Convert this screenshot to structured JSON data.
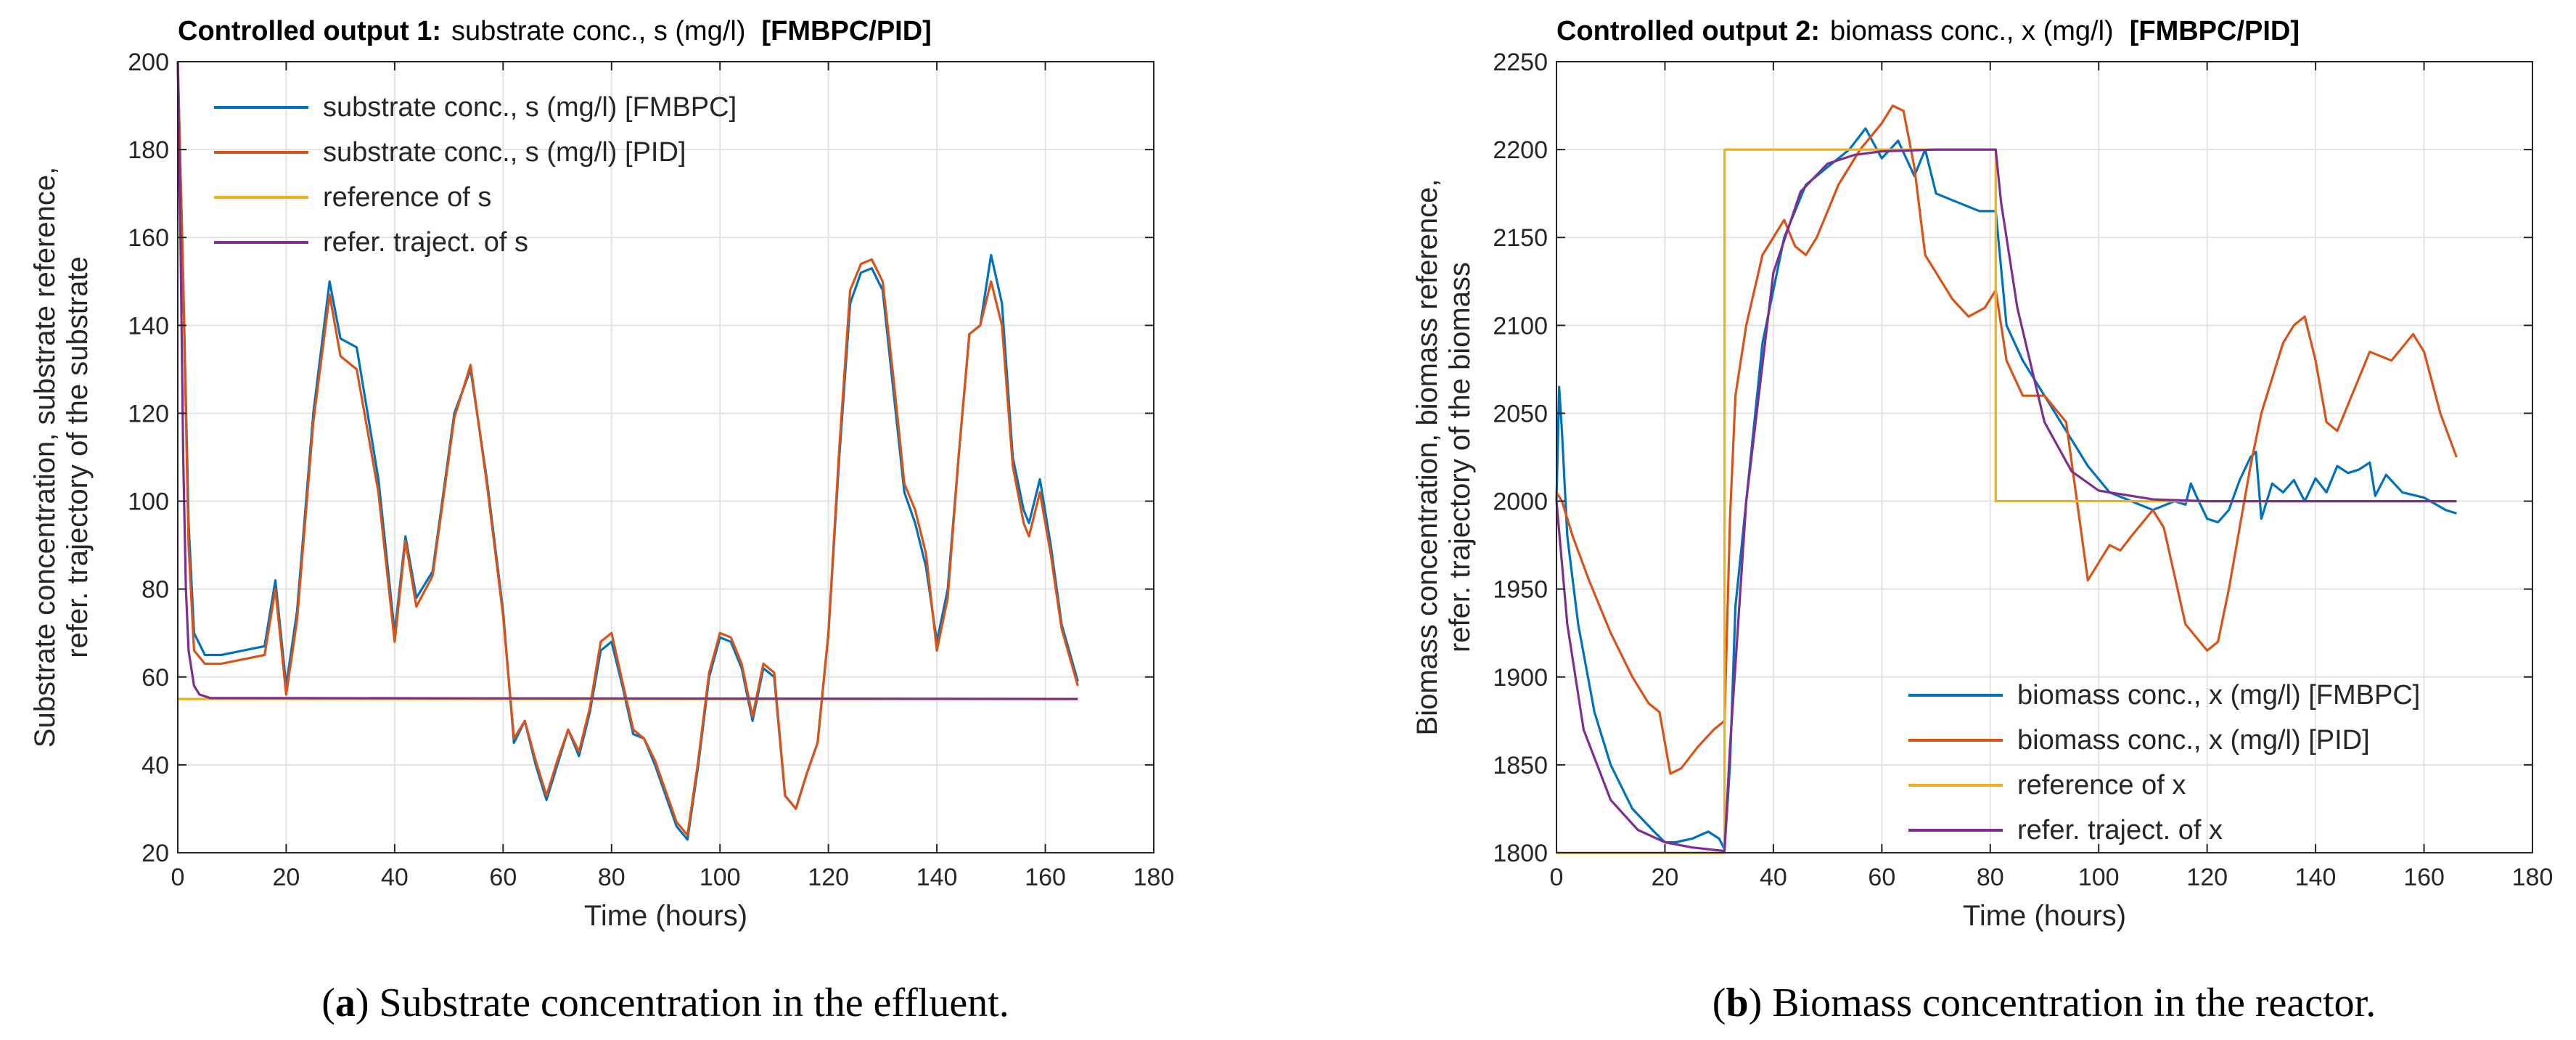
{
  "chart_data": [
    {
      "type": "line",
      "title_bold": "Controlled output 1:",
      "title": "substrate conc., s (mg/l)",
      "title_tag": "[FMBPC/PID]",
      "xlabel": "Time (hours)",
      "ylabel_lines": [
        "Substrate concentration, substrate reference,",
        "refer. trajectory of the substrate"
      ],
      "xlim": [
        0,
        180
      ],
      "ylim": [
        20,
        200
      ],
      "xticks": [
        0,
        20,
        40,
        60,
        80,
        100,
        120,
        140,
        160,
        180
      ],
      "yticks": [
        20,
        40,
        60,
        80,
        100,
        120,
        140,
        160,
        180,
        200
      ],
      "grid": true,
      "legend_position": "top-left",
      "caption_letter": "a",
      "caption": " Substrate concentration in the effluent.",
      "series": [
        {
          "name": "substrate conc., s (mg/l) [FMBPC]",
          "color": "#0072BD",
          "x": [
            0,
            1,
            2,
            3,
            5,
            8,
            12,
            16,
            18,
            20,
            22,
            25,
            28,
            30,
            33,
            37,
            40,
            42,
            44,
            47,
            51,
            54,
            57,
            60,
            62,
            64,
            66,
            68,
            70,
            72,
            74,
            76,
            78,
            80,
            82,
            84,
            86,
            88,
            90,
            92,
            94,
            96,
            98,
            100,
            102,
            104,
            106,
            108,
            110,
            112,
            114,
            116,
            118,
            120,
            122,
            124,
            126,
            128,
            130,
            132,
            134,
            136,
            138,
            140,
            142,
            144,
            146,
            148,
            150,
            152,
            154,
            156,
            157,
            159,
            161,
            163,
            166
          ],
          "y": [
            200,
            150,
            95,
            70,
            65,
            65,
            66,
            67,
            82,
            58,
            75,
            120,
            150,
            137,
            135,
            105,
            70,
            92,
            78,
            84,
            120,
            130,
            105,
            75,
            45,
            50,
            40,
            32,
            40,
            48,
            42,
            52,
            66,
            68,
            58,
            47,
            46,
            40,
            33,
            26,
            23,
            40,
            60,
            69,
            68,
            62,
            50,
            62,
            60,
            33,
            30,
            38,
            45,
            70,
            110,
            145,
            152,
            153,
            148,
            125,
            102,
            95,
            85,
            68,
            80,
            110,
            138,
            140,
            156,
            145,
            110,
            98,
            95,
            105,
            90,
            72,
            59
          ]
        },
        {
          "name": "substrate conc., s (mg/l) [PID]",
          "color": "#D95319",
          "x": [
            0,
            1,
            2,
            3,
            5,
            8,
            12,
            16,
            18,
            20,
            22,
            25,
            28,
            30,
            33,
            37,
            40,
            42,
            44,
            47,
            51,
            54,
            57,
            60,
            62,
            64,
            66,
            68,
            70,
            72,
            74,
            76,
            78,
            80,
            82,
            84,
            86,
            88,
            90,
            92,
            94,
            96,
            98,
            100,
            102,
            104,
            106,
            108,
            110,
            112,
            114,
            116,
            118,
            120,
            122,
            124,
            126,
            128,
            130,
            132,
            134,
            136,
            138,
            140,
            142,
            144,
            146,
            148,
            150,
            152,
            154,
            156,
            157,
            159,
            161,
            163,
            166
          ],
          "y": [
            200,
            150,
            90,
            66,
            63,
            63,
            64,
            65,
            80,
            56,
            73,
            118,
            147,
            133,
            130,
            102,
            68,
            91,
            76,
            83,
            119,
            131,
            104,
            74,
            46,
            50,
            41,
            33,
            41,
            48,
            43,
            53,
            68,
            70,
            59,
            48,
            46,
            41,
            34,
            27,
            24,
            41,
            61,
            70,
            69,
            63,
            51,
            63,
            61,
            33,
            30,
            38,
            45,
            70,
            112,
            148,
            154,
            155,
            150,
            128,
            104,
            98,
            88,
            66,
            78,
            110,
            138,
            140,
            150,
            140,
            108,
            95,
            92,
            102,
            88,
            71,
            58
          ]
        },
        {
          "name": "reference of s",
          "color": "#EDB120",
          "x": [
            0,
            166
          ],
          "y": [
            55,
            55
          ]
        },
        {
          "name": "refer. traject. of s",
          "color": "#7E2F8E",
          "x": [
            0,
            0.5,
            1,
            1.5,
            2,
            3,
            4,
            6,
            166
          ],
          "y": [
            200,
            160,
            110,
            80,
            66,
            58,
            56,
            55.2,
            55
          ]
        }
      ]
    },
    {
      "type": "line",
      "title_bold": "Controlled output 2:",
      "title": "biomass conc., x (mg/l)",
      "title_tag": "[FMBPC/PID]",
      "xlabel": "Time (hours)",
      "ylabel_lines": [
        "Biomass concentration, biomass reference,",
        "refer. trajectory of the biomass"
      ],
      "xlim": [
        0,
        180
      ],
      "ylim": [
        1800,
        2250
      ],
      "xticks": [
        0,
        20,
        40,
        60,
        80,
        100,
        120,
        140,
        160,
        180
      ],
      "yticks": [
        1800,
        1850,
        1900,
        1950,
        2000,
        2050,
        2100,
        2150,
        2200,
        2250
      ],
      "grid": true,
      "legend_position": "bottom-right",
      "caption_letter": "b",
      "caption": " Biomass concentration in the reactor.",
      "series": [
        {
          "name": "biomass conc., x (mg/l) [FMBPC]",
          "color": "#0072BD",
          "x": [
            0,
            0.5,
            1,
            2,
            4,
            7,
            10,
            14,
            18,
            20,
            22,
            25,
            28,
            30,
            31,
            32,
            33,
            35,
            38,
            42,
            46,
            50,
            54,
            57,
            60,
            63,
            66,
            68,
            70,
            74,
            78,
            81,
            83,
            86,
            90,
            94,
            98,
            102,
            106,
            110,
            114,
            116,
            117,
            118,
            120,
            122,
            124,
            126,
            128,
            129,
            130,
            132,
            134,
            136,
            138,
            140,
            142,
            144,
            146,
            148,
            150,
            151,
            153,
            156,
            160,
            164,
            166
          ],
          "y": [
            2000,
            2065,
            2040,
            1980,
            1930,
            1880,
            1850,
            1825,
            1812,
            1806,
            1806,
            1808,
            1812,
            1808,
            1802,
            1850,
            1940,
            2000,
            2090,
            2150,
            2180,
            2190,
            2200,
            2212,
            2195,
            2205,
            2185,
            2200,
            2175,
            2170,
            2165,
            2165,
            2100,
            2080,
            2060,
            2040,
            2020,
            2005,
            2000,
            1995,
            2000,
            1998,
            2010,
            2003,
            1990,
            1988,
            1995,
            2012,
            2025,
            2028,
            1990,
            2010,
            2005,
            2012,
            2000,
            2013,
            2005,
            2020,
            2016,
            2018,
            2022,
            2003,
            2015,
            2005,
            2002,
            1995,
            1993
          ]
        },
        {
          "name": "biomass conc., x (mg/l) [PID]",
          "color": "#D95319",
          "x": [
            0,
            1,
            3,
            6,
            10,
            14,
            17,
            19,
            21,
            23,
            26,
            29,
            31,
            32,
            33,
            35,
            38,
            42,
            44,
            46,
            48,
            52,
            56,
            60,
            62,
            64,
            66,
            68,
            70,
            73,
            76,
            79,
            81,
            83,
            86,
            90,
            94,
            96,
            98,
            100,
            102,
            104,
            106,
            110,
            112,
            116,
            120,
            122,
            124,
            126,
            128,
            130,
            134,
            136,
            138,
            140,
            142,
            144,
            146,
            150,
            154,
            158,
            160,
            163,
            166
          ],
          "y": [
            2005,
            2000,
            1980,
            1955,
            1925,
            1900,
            1885,
            1880,
            1845,
            1848,
            1860,
            1870,
            1875,
            1990,
            2060,
            2100,
            2140,
            2160,
            2145,
            2140,
            2150,
            2180,
            2200,
            2215,
            2225,
            2222,
            2190,
            2140,
            2130,
            2115,
            2105,
            2110,
            2120,
            2080,
            2060,
            2060,
            2045,
            2000,
            1955,
            1965,
            1975,
            1972,
            1980,
            1995,
            1985,
            1930,
            1915,
            1920,
            1950,
            1985,
            2020,
            2050,
            2090,
            2100,
            2105,
            2080,
            2045,
            2040,
            2055,
            2085,
            2080,
            2095,
            2085,
            2050,
            2025
          ]
        },
        {
          "name": "reference of x",
          "color": "#EDB120",
          "x": [
            0,
            31,
            31,
            81,
            81,
            166
          ],
          "y": [
            1800,
            1800,
            2200,
            2200,
            2000,
            2000
          ]
        },
        {
          "name": "refer. traject. of x",
          "color": "#7E2F8E",
          "x": [
            0,
            2,
            5,
            10,
            15,
            20,
            25,
            31,
            32,
            35,
            40,
            45,
            50,
            55,
            60,
            70,
            81,
            82,
            85,
            90,
            95,
            100,
            110,
            120,
            166
          ],
          "y": [
            2000,
            1930,
            1870,
            1830,
            1813,
            1806,
            1803,
            1801,
            1860,
            2000,
            2130,
            2176,
            2192,
            2197,
            2199,
            2200,
            2200,
            2170,
            2110,
            2045,
            2017,
            2006,
            2001,
            2000,
            2000
          ]
        }
      ]
    }
  ]
}
